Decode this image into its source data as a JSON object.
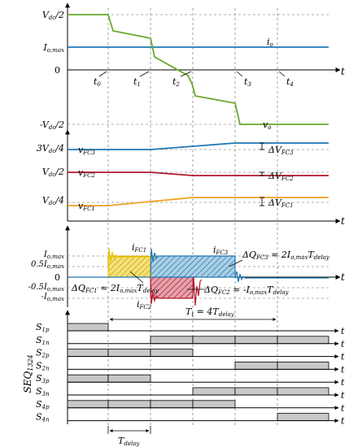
{
  "colors": {
    "vo": "#6aa82e",
    "io": "#1f78b4",
    "fc3": "#1f78b4",
    "fc2": "#b2182b",
    "fc1": "#f0a020",
    "fill_fc1": "#e6c200",
    "fill_fc3": "#5aa0c8",
    "fill_fc2": "#b83a4a",
    "grid": "#888888",
    "seq_fill": "#c8c8c8"
  },
  "panel1": {
    "y_labels": {
      "vdc_half": "V",
      "vdc_half_sub": "dc",
      "vdc_half_tail": "/2",
      "io_max": "I",
      "io_max_sub": "o,max",
      "zero": "0",
      "neg_vdc_half": "-V",
      "neg_vdc_half_sub": "dc",
      "neg_vdc_half_tail": "/2"
    },
    "time_labels": [
      "t",
      "t",
      "t",
      "t",
      "t"
    ],
    "time_subs": [
      "0",
      "1",
      "2",
      "3",
      "4"
    ],
    "t_axis": "t",
    "io_label": "i",
    "io_sub": "o",
    "vo_label": "v",
    "vo_sub": "o"
  },
  "panel2": {
    "y_labels": {
      "v3": "3V",
      "v3_sub": "dc",
      "v3_tail": "/4",
      "v2": "V",
      "v2_sub": "dc",
      "v2_tail": "/2",
      "v1": "V",
      "v1_sub": "dc",
      "v1_tail": "/4"
    },
    "t_axis": "t",
    "fc3": "v",
    "fc3_sub": "FC3",
    "dfc3": "ΔV",
    "dfc3_sub": "FC3",
    "fc2": "v",
    "fc2_sub": "FC2",
    "dfc2": "ΔV",
    "dfc2_sub": "FC2",
    "fc1": "v",
    "fc1_sub": "FC1",
    "dfc1": "ΔV",
    "dfc1_sub": "FC1"
  },
  "panel3": {
    "y_labels": {
      "imax": "I",
      "imax_sub": "o,max",
      "half": "0.5I",
      "half_sub": "o,max",
      "zero": "0",
      "neghalf": "-0.5I",
      "neghalf_sub": "o,max",
      "neg": "-I",
      "neg_sub": "o,max"
    },
    "t_axis": "t",
    "ifc1": "i",
    "ifc1_sub": "FC1",
    "ifc2": "i",
    "ifc2_sub": "FC2",
    "ifc3": "i",
    "ifc3_sub": "FC3",
    "dq3_a": "ΔQ",
    "dq3_a_sub": "FC3",
    "dq3_b": " ≈ 2",
    "dq3_c": "I",
    "dq3_c_sub": "o,max",
    "dq3_d": "T",
    "dq3_d_sub": "delay",
    "dq1_a": "ΔQ",
    "dq1_a_sub": "FC1",
    "dq1_b": " ≈ 2",
    "dq1_c": "I",
    "dq1_c_sub": "o,max",
    "dq1_d": "T",
    "dq1_d_sub": "delay",
    "dq2_a": "ΔQ",
    "dq2_a_sub": "FC2",
    "dq2_b": " ≈ -",
    "dq2_c": "I",
    "dq2_c_sub": "o,max",
    "dq2_d": "T",
    "dq2_d_sub": "delay",
    "tt_a": "T",
    "tt_a_sub": "t",
    "tt_b": " = 4",
    "tt_c": "T",
    "tt_c_sub": "delay"
  },
  "panel4": {
    "seq_label": "SEQ",
    "seq_sub": "1324",
    "rows": [
      {
        "name": "S",
        "sub": "1p",
        "axis": "t",
        "state": [
          1,
          0,
          0,
          0,
          0,
          0
        ]
      },
      {
        "name": "S",
        "sub": "1n",
        "axis": "t",
        "state": [
          0,
          0,
          1,
          1,
          1,
          1
        ]
      },
      {
        "name": "S",
        "sub": "2p",
        "axis": "t",
        "state": [
          1,
          1,
          1,
          0,
          0,
          0
        ]
      },
      {
        "name": "S",
        "sub": "2n",
        "axis": "t",
        "state": [
          0,
          0,
          0,
          0,
          1,
          1
        ]
      },
      {
        "name": "S",
        "sub": "3p",
        "axis": "t",
        "state": [
          1,
          1,
          0,
          0,
          0,
          0
        ]
      },
      {
        "name": "S",
        "sub": "3n",
        "axis": "t",
        "state": [
          0,
          0,
          0,
          1,
          1,
          1
        ]
      },
      {
        "name": "S",
        "sub": "4p",
        "axis": "t",
        "state": [
          1,
          1,
          1,
          1,
          0,
          0
        ]
      },
      {
        "name": "S",
        "sub": "4n",
        "axis": "t",
        "state": [
          0,
          0,
          0,
          0,
          0,
          1
        ]
      }
    ],
    "tdelay": "T",
    "tdelay_sub": "delay"
  }
}
